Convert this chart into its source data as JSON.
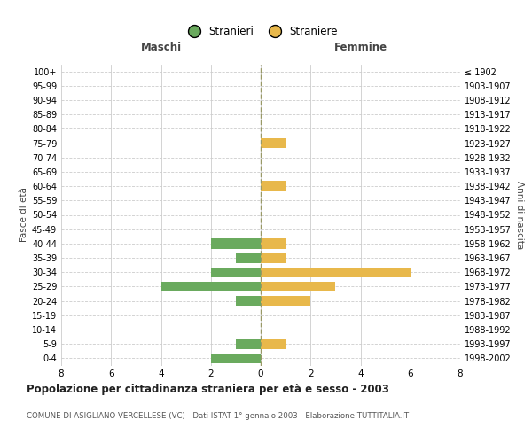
{
  "age_groups": [
    "100+",
    "95-99",
    "90-94",
    "85-89",
    "80-84",
    "75-79",
    "70-74",
    "65-69",
    "60-64",
    "55-59",
    "50-54",
    "45-49",
    "40-44",
    "35-39",
    "30-34",
    "25-29",
    "20-24",
    "15-19",
    "10-14",
    "5-9",
    "0-4"
  ],
  "birth_years": [
    "≤ 1902",
    "1903-1907",
    "1908-1912",
    "1913-1917",
    "1918-1922",
    "1923-1927",
    "1928-1932",
    "1933-1937",
    "1938-1942",
    "1943-1947",
    "1948-1952",
    "1953-1957",
    "1958-1962",
    "1963-1967",
    "1968-1972",
    "1973-1977",
    "1978-1982",
    "1983-1987",
    "1988-1992",
    "1993-1997",
    "1998-2002"
  ],
  "males": [
    0,
    0,
    0,
    0,
    0,
    0,
    0,
    0,
    0,
    0,
    0,
    0,
    2,
    1,
    2,
    4,
    1,
    0,
    0,
    1,
    2
  ],
  "females": [
    0,
    0,
    0,
    0,
    0,
    1,
    0,
    0,
    1,
    0,
    0,
    0,
    1,
    1,
    6,
    3,
    2,
    0,
    0,
    1,
    0
  ],
  "male_color": "#6aaa5e",
  "female_color": "#e8b84b",
  "grid_color": "#cccccc",
  "center_line_color": "#999966",
  "title": "Popolazione per cittadinanza straniera per età e sesso - 2003",
  "subtitle": "COMUNE DI ASIGLIANO VERCELLESE (VC) - Dati ISTAT 1° gennaio 2003 - Elaborazione TUTTITALIA.IT",
  "ylabel_left": "Fasce di età",
  "ylabel_right": "Anni di nascita",
  "header_left": "Maschi",
  "header_right": "Femmine",
  "legend_male": "Stranieri",
  "legend_female": "Straniere",
  "xlim": 8,
  "bar_height": 0.7
}
